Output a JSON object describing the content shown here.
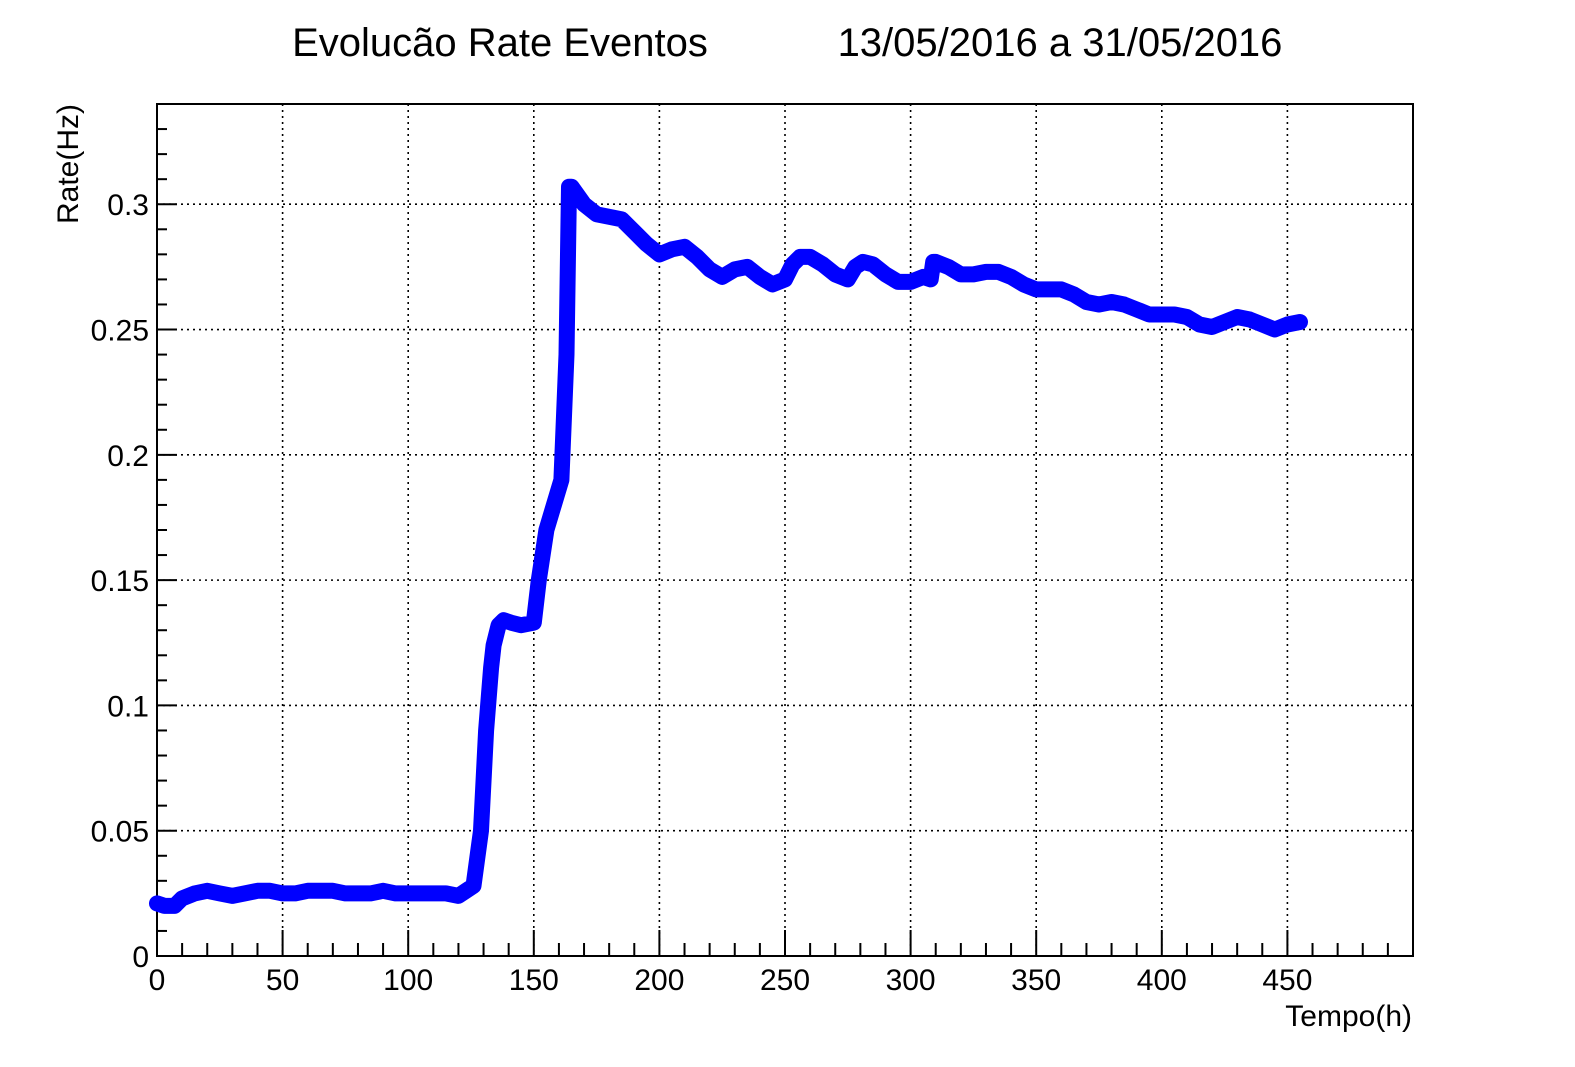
{
  "chart_data": {
    "type": "line",
    "title": "Evolucão Rate Eventos",
    "subtitle": "13/05/2016 a 31/05/2016",
    "xlabel": "Tempo(h)",
    "ylabel": "Rate(Hz)",
    "xlim": [
      0,
      500
    ],
    "ylim": [
      0,
      0.34
    ],
    "xticks": [
      0,
      50,
      100,
      150,
      200,
      250,
      300,
      350,
      400,
      450
    ],
    "xtick_labels": [
      "0",
      "50",
      "100",
      "150",
      "200",
      "250",
      "300",
      "350",
      "400",
      "450"
    ],
    "yticks": [
      0,
      0.05,
      0.1,
      0.15,
      0.2,
      0.25,
      0.3
    ],
    "ytick_labels": [
      "0",
      "0.05",
      "0.1",
      "0.15",
      "0.2",
      "0.25",
      "0.3"
    ],
    "grid": true,
    "line_color": "#0000ff",
    "series": [
      {
        "x": [
          0,
          3,
          7,
          10,
          15,
          20,
          25,
          30,
          35,
          40,
          45,
          50,
          55,
          60,
          65,
          70,
          75,
          80,
          85,
          90,
          95,
          100,
          105,
          110,
          115,
          120,
          123,
          126,
          129,
          131,
          133,
          134,
          136,
          138,
          141,
          145,
          150,
          152,
          155,
          158,
          161,
          163,
          164,
          165,
          170,
          175,
          180,
          185,
          190,
          195,
          200,
          205,
          210,
          215,
          220,
          225,
          230,
          235,
          240,
          245,
          250,
          253,
          256,
          260,
          265,
          270,
          275,
          278,
          281,
          285,
          290,
          295,
          300,
          305,
          308,
          309,
          310,
          315,
          320,
          325,
          330,
          335,
          340,
          345,
          350,
          355,
          360,
          365,
          370,
          375,
          380,
          385,
          390,
          395,
          400,
          405,
          410,
          415,
          420,
          425,
          430,
          435,
          440,
          445,
          450,
          455
        ],
        "y": [
          0.021,
          0.02,
          0.02,
          0.023,
          0.025,
          0.026,
          0.025,
          0.024,
          0.025,
          0.026,
          0.026,
          0.025,
          0.025,
          0.026,
          0.026,
          0.026,
          0.025,
          0.025,
          0.025,
          0.026,
          0.025,
          0.025,
          0.025,
          0.025,
          0.025,
          0.024,
          0.026,
          0.028,
          0.05,
          0.09,
          0.115,
          0.124,
          0.132,
          0.134,
          0.133,
          0.132,
          0.133,
          0.15,
          0.17,
          0.18,
          0.19,
          0.24,
          0.307,
          0.307,
          0.3,
          0.296,
          0.295,
          0.294,
          0.289,
          0.284,
          0.28,
          0.282,
          0.283,
          0.279,
          0.274,
          0.271,
          0.274,
          0.275,
          0.271,
          0.268,
          0.27,
          0.276,
          0.279,
          0.279,
          0.276,
          0.272,
          0.27,
          0.275,
          0.277,
          0.276,
          0.272,
          0.269,
          0.269,
          0.271,
          0.27,
          0.277,
          0.277,
          0.275,
          0.272,
          0.272,
          0.273,
          0.273,
          0.271,
          0.268,
          0.266,
          0.266,
          0.266,
          0.264,
          0.261,
          0.26,
          0.261,
          0.26,
          0.258,
          0.256,
          0.256,
          0.256,
          0.255,
          0.252,
          0.251,
          0.253,
          0.255,
          0.254,
          0.252,
          0.25,
          0.252,
          0.253
        ]
      }
    ]
  }
}
